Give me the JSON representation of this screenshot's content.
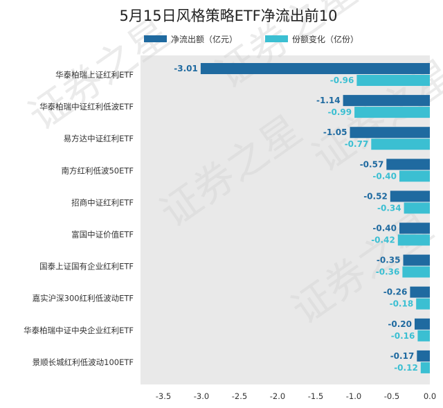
{
  "chart_data": {
    "type": "bar",
    "orientation": "horizontal",
    "title": "5月15日风格策略ETF净流出前10",
    "categories": [
      "华泰柏瑞上证红利ETF",
      "华泰柏瑞中证红利低波ETF",
      "易方达中证红利ETF",
      "南方红利低波50ETF",
      "招商中证红利ETF",
      "富国中证价值ETF",
      "国泰上证国有企业红利ETF",
      "嘉实沪深300红利低波动ETF",
      "华泰柏瑞中证中央企业红利ETF",
      "景顺长城红利低波动100ETF"
    ],
    "series": [
      {
        "name": "净流出额（亿元）",
        "color": "#1f6aa0",
        "values": [
          -3.01,
          -1.14,
          -1.05,
          -0.57,
          -0.52,
          -0.4,
          -0.35,
          -0.26,
          -0.2,
          -0.17
        ],
        "labels": [
          "-3.01",
          "-1.14",
          "-1.05",
          "-0.57",
          "-0.52",
          "-0.40",
          "-0.35",
          "-0.26",
          "-0.20",
          "-0.17"
        ]
      },
      {
        "name": "份额变化（亿份）",
        "color": "#3bbfd2",
        "values": [
          -0.96,
          -0.99,
          -0.77,
          -0.4,
          -0.34,
          -0.42,
          -0.36,
          -0.18,
          -0.16,
          -0.12
        ],
        "labels": [
          "-0.96",
          "-0.99",
          "-0.77",
          "-0.40",
          "-0.34",
          "-0.42",
          "-0.36",
          "-0.18",
          "-0.16",
          "-0.12"
        ]
      }
    ],
    "x_ticks": [
      "-3.5",
      "-3.0",
      "-2.5",
      "-2.0",
      "-1.5",
      "-1.0",
      "-0.5",
      "0.0"
    ],
    "xlim": [
      -3.8,
      0.0
    ],
    "grid": false,
    "legend": "top-center",
    "background": "#e9e9e9",
    "watermark": "证券之星"
  }
}
